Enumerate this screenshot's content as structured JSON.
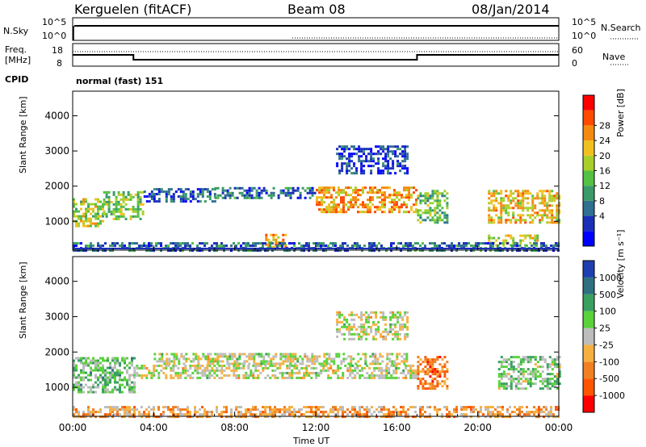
{
  "header": {
    "station": "Kerguelen (fitACF)",
    "beam": "Beam 08",
    "date": "08/Jan/2014"
  },
  "panels": {
    "nsky": {
      "label": "N.Sky",
      "ticks": [
        "10^5",
        "10^0"
      ],
      "right_ticks": [
        "10^5",
        "10^0"
      ],
      "right_label": "N.Search"
    },
    "freq": {
      "label_line1": "Freq.",
      "label_line2": "[MHz]",
      "ticks": [
        "18",
        "8"
      ],
      "right_ticks": [
        "60",
        "0"
      ],
      "right_label": "Nave"
    },
    "cpid": {
      "label": "CPID",
      "mode_text": "normal (fast) 151"
    }
  },
  "chart_data": [
    {
      "type": "heatmap",
      "title": "",
      "xlabel": "",
      "ylabel": "Slant Range [km]",
      "y_ticks": [
        "4000",
        "3000",
        "2000",
        "1000"
      ],
      "colorbar_label": "Power [dB]",
      "colorbar_ticks": [
        "28",
        "24",
        "20",
        "16",
        "12",
        "8",
        "4"
      ],
      "colors": [
        "#0000ff",
        "#1a2fb8",
        "#2f6f8f",
        "#3a9a6a",
        "#55c043",
        "#a8cf2a",
        "#f0c020",
        "#f58a10",
        "#ff4a00",
        "#ff0000"
      ],
      "regions": [
        {
          "x": [
            0,
            1.5
          ],
          "y": [
            900,
            1700
          ],
          "v": 0.55
        },
        {
          "x": [
            1.5,
            3.5
          ],
          "y": [
            1100,
            1900
          ],
          "v": 0.5
        },
        {
          "x": [
            3.5,
            7
          ],
          "y": [
            1600,
            2000
          ],
          "v": 0.2
        },
        {
          "x": [
            7,
            12
          ],
          "y": [
            1700,
            2000
          ],
          "v": 0.25
        },
        {
          "x": [
            12,
            17
          ],
          "y": [
            1300,
            2000
          ],
          "v": 0.72
        },
        {
          "x": [
            17,
            18.5
          ],
          "y": [
            1000,
            1900
          ],
          "v": 0.45
        },
        {
          "x": [
            20.5,
            24
          ],
          "y": [
            1000,
            1900
          ],
          "v": 0.65
        },
        {
          "x": [
            20.5,
            23
          ],
          "y": [
            350,
            650
          ],
          "v": 0.6
        },
        {
          "x": [
            9.5,
            10.5
          ],
          "y": [
            300,
            650
          ],
          "v": 0.7
        },
        {
          "x": [
            13,
            16.5
          ],
          "y": [
            2400,
            3200
          ],
          "v": 0.15
        },
        {
          "x": [
            0,
            24
          ],
          "y": [
            200,
            450
          ],
          "v": 0.25
        }
      ]
    },
    {
      "type": "heatmap",
      "title": "",
      "xlabel": "Time UT",
      "ylabel": "Slant Range [km]",
      "x_ticks": [
        "00:00",
        "04:00",
        "08:00",
        "12:00",
        "16:00",
        "20:00",
        "00:00"
      ],
      "y_ticks": [
        "4000",
        "3000",
        "2000",
        "1000"
      ],
      "colorbar_label": "Velocity [m s⁻¹]",
      "colorbar_ticks": [
        "1000",
        "500",
        "100",
        "25",
        "-25",
        "-100",
        "-500",
        "-1000"
      ],
      "colors": [
        "#ff0000",
        "#ff5500",
        "#f08020",
        "#f5b040",
        "#bdbdbd",
        "#5ad23a",
        "#3aa060",
        "#2f7080",
        "#1f3fb0"
      ],
      "regions": [
        {
          "x": [
            0,
            3
          ],
          "y": [
            900,
            1900
          ],
          "v": 0.62
        },
        {
          "x": [
            3,
            17
          ],
          "y": [
            1300,
            1700
          ],
          "v": 0.5
        },
        {
          "x": [
            4,
            16.5
          ],
          "y": [
            1700,
            2000
          ],
          "v": 0.5
        },
        {
          "x": [
            17,
            18.5
          ],
          "y": [
            1000,
            1900
          ],
          "v": 0.25
        },
        {
          "x": [
            21,
            24
          ],
          "y": [
            1000,
            1900
          ],
          "v": 0.6
        },
        {
          "x": [
            0,
            24
          ],
          "y": [
            200,
            500
          ],
          "v": 0.35
        },
        {
          "x": [
            13,
            16.5
          ],
          "y": [
            2400,
            3200
          ],
          "v": 0.5
        }
      ]
    }
  ]
}
